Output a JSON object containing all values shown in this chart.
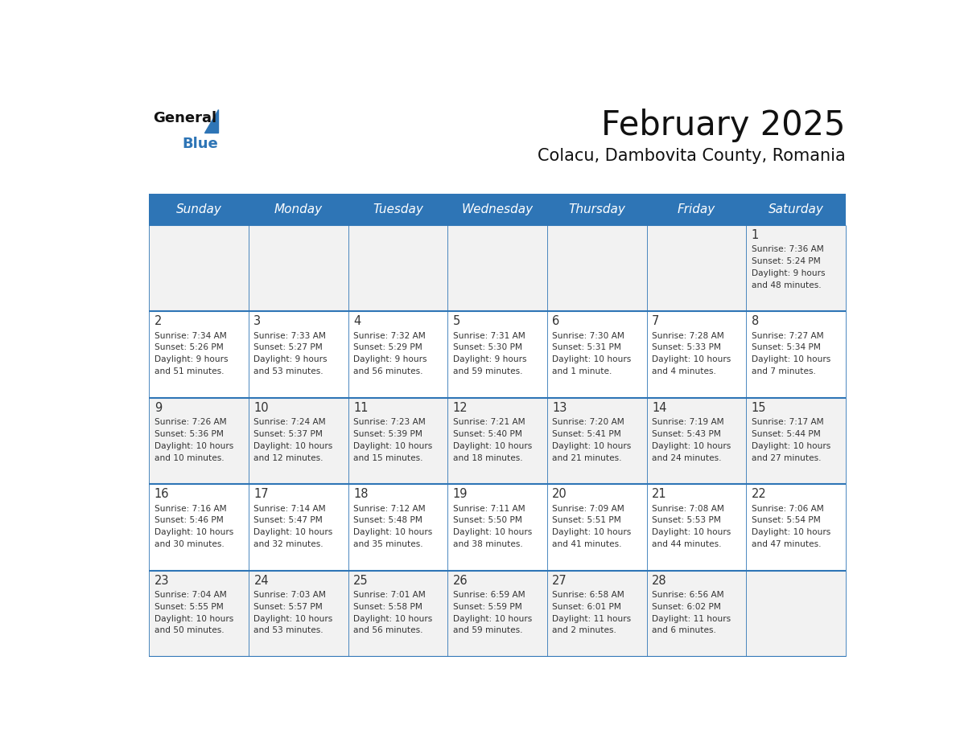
{
  "title": "February 2025",
  "subtitle": "Colacu, Dambovita County, Romania",
  "header_color": "#2E75B6",
  "header_text_color": "#FFFFFF",
  "day_names": [
    "Sunday",
    "Monday",
    "Tuesday",
    "Wednesday",
    "Thursday",
    "Friday",
    "Saturday"
  ],
  "background_color": "#FFFFFF",
  "cell_bg_even": "#F2F2F2",
  "cell_bg_odd": "#FFFFFF",
  "grid_line_color": "#2E75B6",
  "day_number_color": "#333333",
  "cell_text_color": "#333333",
  "weeks": [
    [
      {
        "day": null,
        "info": null
      },
      {
        "day": null,
        "info": null
      },
      {
        "day": null,
        "info": null
      },
      {
        "day": null,
        "info": null
      },
      {
        "day": null,
        "info": null
      },
      {
        "day": null,
        "info": null
      },
      {
        "day": 1,
        "info": "Sunrise: 7:36 AM\nSunset: 5:24 PM\nDaylight: 9 hours\nand 48 minutes."
      }
    ],
    [
      {
        "day": 2,
        "info": "Sunrise: 7:34 AM\nSunset: 5:26 PM\nDaylight: 9 hours\nand 51 minutes."
      },
      {
        "day": 3,
        "info": "Sunrise: 7:33 AM\nSunset: 5:27 PM\nDaylight: 9 hours\nand 53 minutes."
      },
      {
        "day": 4,
        "info": "Sunrise: 7:32 AM\nSunset: 5:29 PM\nDaylight: 9 hours\nand 56 minutes."
      },
      {
        "day": 5,
        "info": "Sunrise: 7:31 AM\nSunset: 5:30 PM\nDaylight: 9 hours\nand 59 minutes."
      },
      {
        "day": 6,
        "info": "Sunrise: 7:30 AM\nSunset: 5:31 PM\nDaylight: 10 hours\nand 1 minute."
      },
      {
        "day": 7,
        "info": "Sunrise: 7:28 AM\nSunset: 5:33 PM\nDaylight: 10 hours\nand 4 minutes."
      },
      {
        "day": 8,
        "info": "Sunrise: 7:27 AM\nSunset: 5:34 PM\nDaylight: 10 hours\nand 7 minutes."
      }
    ],
    [
      {
        "day": 9,
        "info": "Sunrise: 7:26 AM\nSunset: 5:36 PM\nDaylight: 10 hours\nand 10 minutes."
      },
      {
        "day": 10,
        "info": "Sunrise: 7:24 AM\nSunset: 5:37 PM\nDaylight: 10 hours\nand 12 minutes."
      },
      {
        "day": 11,
        "info": "Sunrise: 7:23 AM\nSunset: 5:39 PM\nDaylight: 10 hours\nand 15 minutes."
      },
      {
        "day": 12,
        "info": "Sunrise: 7:21 AM\nSunset: 5:40 PM\nDaylight: 10 hours\nand 18 minutes."
      },
      {
        "day": 13,
        "info": "Sunrise: 7:20 AM\nSunset: 5:41 PM\nDaylight: 10 hours\nand 21 minutes."
      },
      {
        "day": 14,
        "info": "Sunrise: 7:19 AM\nSunset: 5:43 PM\nDaylight: 10 hours\nand 24 minutes."
      },
      {
        "day": 15,
        "info": "Sunrise: 7:17 AM\nSunset: 5:44 PM\nDaylight: 10 hours\nand 27 minutes."
      }
    ],
    [
      {
        "day": 16,
        "info": "Sunrise: 7:16 AM\nSunset: 5:46 PM\nDaylight: 10 hours\nand 30 minutes."
      },
      {
        "day": 17,
        "info": "Sunrise: 7:14 AM\nSunset: 5:47 PM\nDaylight: 10 hours\nand 32 minutes."
      },
      {
        "day": 18,
        "info": "Sunrise: 7:12 AM\nSunset: 5:48 PM\nDaylight: 10 hours\nand 35 minutes."
      },
      {
        "day": 19,
        "info": "Sunrise: 7:11 AM\nSunset: 5:50 PM\nDaylight: 10 hours\nand 38 minutes."
      },
      {
        "day": 20,
        "info": "Sunrise: 7:09 AM\nSunset: 5:51 PM\nDaylight: 10 hours\nand 41 minutes."
      },
      {
        "day": 21,
        "info": "Sunrise: 7:08 AM\nSunset: 5:53 PM\nDaylight: 10 hours\nand 44 minutes."
      },
      {
        "day": 22,
        "info": "Sunrise: 7:06 AM\nSunset: 5:54 PM\nDaylight: 10 hours\nand 47 minutes."
      }
    ],
    [
      {
        "day": 23,
        "info": "Sunrise: 7:04 AM\nSunset: 5:55 PM\nDaylight: 10 hours\nand 50 minutes."
      },
      {
        "day": 24,
        "info": "Sunrise: 7:03 AM\nSunset: 5:57 PM\nDaylight: 10 hours\nand 53 minutes."
      },
      {
        "day": 25,
        "info": "Sunrise: 7:01 AM\nSunset: 5:58 PM\nDaylight: 10 hours\nand 56 minutes."
      },
      {
        "day": 26,
        "info": "Sunrise: 6:59 AM\nSunset: 5:59 PM\nDaylight: 10 hours\nand 59 minutes."
      },
      {
        "day": 27,
        "info": "Sunrise: 6:58 AM\nSunset: 6:01 PM\nDaylight: 11 hours\nand 2 minutes."
      },
      {
        "day": 28,
        "info": "Sunrise: 6:56 AM\nSunset: 6:02 PM\nDaylight: 11 hours\nand 6 minutes."
      },
      {
        "day": null,
        "info": null
      }
    ]
  ]
}
